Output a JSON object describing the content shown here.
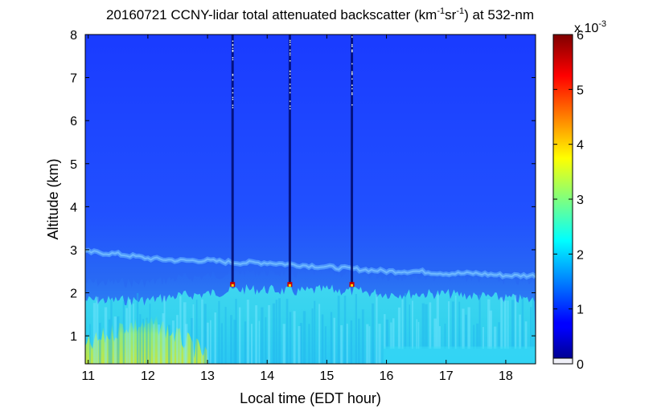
{
  "chart_data": {
    "type": "heatmap",
    "title": {
      "prefix": "20160721 CCNY-lidar total attenuated backscatter (km",
      "sup1": "-1",
      "mid": "sr",
      "sup2": "-1",
      "suffix": ") at 532-nm"
    },
    "xlabel": "Local time (EDT hour)",
    "ylabel": "Altitude (km)",
    "xlim": [
      10.95,
      18.5
    ],
    "ylim": [
      0.35,
      8
    ],
    "xticks": [
      "11",
      "12",
      "13",
      "14",
      "15",
      "16",
      "17",
      "18"
    ],
    "yticks": [
      "1",
      "2",
      "3",
      "4",
      "5",
      "6",
      "7",
      "8"
    ],
    "colorbar": {
      "min": 0,
      "max": 6,
      "ticks": [
        "0",
        "1",
        "2",
        "3",
        "4",
        "5",
        "6"
      ],
      "multiplier_base": "x 10",
      "multiplier_exp": "-3",
      "colormap": "jet"
    },
    "features": {
      "boundary_layer_top_km": [
        [
          11.0,
          1.95
        ],
        [
          11.5,
          1.95
        ],
        [
          12.0,
          1.95
        ],
        [
          12.5,
          2.05
        ],
        [
          13.0,
          2.1
        ],
        [
          13.5,
          2.2
        ],
        [
          14.0,
          2.2
        ],
        [
          14.5,
          2.15
        ],
        [
          15.0,
          2.2
        ],
        [
          15.5,
          2.15
        ],
        [
          16.0,
          2.1
        ],
        [
          16.5,
          2.1
        ],
        [
          17.0,
          2.1
        ],
        [
          17.5,
          2.05
        ],
        [
          18.0,
          2.0
        ],
        [
          18.5,
          1.95
        ]
      ],
      "elevated_aerosol_layer_km": [
        [
          11.0,
          2.95
        ],
        [
          11.5,
          2.9
        ],
        [
          12.0,
          2.8
        ],
        [
          12.5,
          2.75
        ],
        [
          13.0,
          2.75
        ],
        [
          13.5,
          2.7
        ],
        [
          14.0,
          2.7
        ],
        [
          14.5,
          2.65
        ],
        [
          15.0,
          2.6
        ],
        [
          15.5,
          2.55
        ],
        [
          16.0,
          2.5
        ],
        [
          16.5,
          2.5
        ],
        [
          17.0,
          2.45
        ],
        [
          17.5,
          2.45
        ],
        [
          18.0,
          2.4
        ],
        [
          18.5,
          2.4
        ]
      ],
      "cloud_columns_hour": [
        13.42,
        14.38,
        15.42
      ]
    }
  }
}
